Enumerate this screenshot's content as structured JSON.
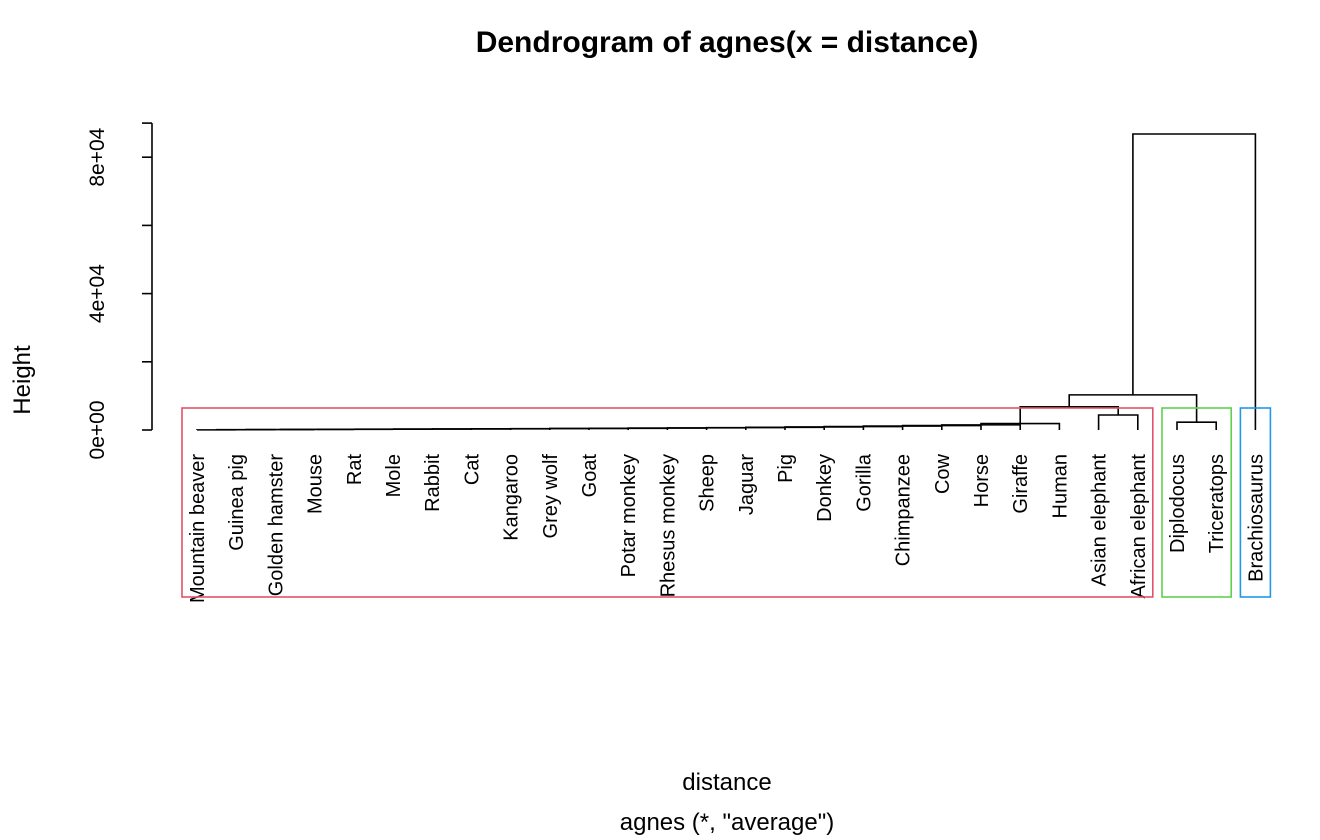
{
  "chart_data": {
    "type": "dendrogram",
    "title": "Dendrogram of  agnes(x = distance)",
    "xlabel": "distance",
    "sub": "agnes (*, \"average\")",
    "ylabel": "Height",
    "ylim": [
      0,
      92000
    ],
    "yticks": [
      0,
      20000,
      40000,
      60000,
      80000,
      90000
    ],
    "ytick_labels": [
      {
        "value": 0,
        "label": "0e+00"
      },
      {
        "value": 40000,
        "label": "4e+04"
      },
      {
        "value": 80000,
        "label": "8e+04"
      }
    ],
    "leaves": [
      "Mountain beaver",
      "Guinea pig",
      "Golden hamster",
      "Mouse",
      "Rat",
      "Mole",
      "Rabbit",
      "Cat",
      "Kangaroo",
      "Grey wolf",
      "Goat",
      "Potar monkey",
      "Rhesus monkey",
      "Sheep",
      "Jaguar",
      "Pig",
      "Donkey",
      "Gorilla",
      "Chimpanzee",
      "Cow",
      "Horse",
      "Giraffe",
      "Human",
      "Asian elephant",
      "African elephant",
      "Diplodocus",
      "Triceratops",
      "Brachiosaurus"
    ],
    "merges": [
      [
        -1,
        -2,
        40
      ],
      [
        -3,
        1,
        80
      ],
      [
        -4,
        2,
        120
      ],
      [
        -5,
        3,
        160
      ],
      [
        -6,
        4,
        200
      ],
      [
        -7,
        5,
        240
      ],
      [
        -8,
        6,
        280
      ],
      [
        -9,
        7,
        320
      ],
      [
        -10,
        8,
        360
      ],
      [
        -11,
        9,
        400
      ],
      [
        -12,
        10,
        450
      ],
      [
        -13,
        11,
        500
      ],
      [
        -14,
        12,
        560
      ],
      [
        -15,
        13,
        620
      ],
      [
        -16,
        14,
        700
      ],
      [
        -17,
        15,
        780
      ],
      [
        -18,
        16,
        900
      ],
      [
        -19,
        17,
        1000
      ],
      [
        -20,
        18,
        1150
      ],
      [
        -21,
        19,
        1300
      ],
      [
        -22,
        20,
        1500
      ],
      [
        -23,
        21,
        1900
      ],
      [
        -24,
        -25,
        4400
      ],
      [
        22,
        23,
        6800
      ],
      [
        -26,
        -27,
        2300
      ],
      [
        24,
        25,
        10300
      ],
      [
        -28,
        26,
        86800
      ]
    ],
    "clusters": [
      {
        "from": 0,
        "to": 24,
        "color": "#DF536B"
      },
      {
        "from": 25,
        "to": 26,
        "color": "#61D04F"
      },
      {
        "from": 27,
        "to": 27,
        "color": "#2297E6"
      }
    ]
  }
}
